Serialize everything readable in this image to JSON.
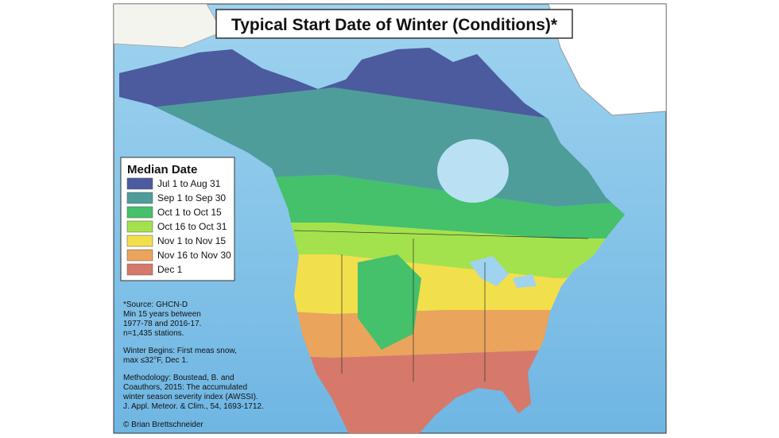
{
  "title": "Typical Start Date of Winter (Conditions)*",
  "legend": {
    "title": "Median Date",
    "items": [
      {
        "label": "Jul 1 to Aug 31",
        "color": "#4b5b9e"
      },
      {
        "label": "Sep 1 to Sep 30",
        "color": "#4f9d9b"
      },
      {
        "label": "Oct 1 to Oct 15",
        "color": "#45c06b"
      },
      {
        "label": "Oct 16 to Oct 31",
        "color": "#a3e24c"
      },
      {
        "label": "Nov 1 to Nov 15",
        "color": "#f2df4c"
      },
      {
        "label": "Nov 16 to Nov 30",
        "color": "#eba45c"
      },
      {
        "label": "Dec 1",
        "color": "#d6796a"
      }
    ]
  },
  "notes": [
    [
      "*Source: GHCN-D",
      "Min 15 years between",
      "1977-78 and 2016-17.",
      "n=1,435 stations."
    ],
    [
      "Winter Begins: First meas snow,",
      "max ≤32°F, Dec 1."
    ],
    [
      "Methodology: Boustead, B. and",
      "Coauthors, 2015: The accumulated",
      "winter season severity index (AWSSI).",
      "J. Appl. Meteor. & Clim., 54, 1693-1712."
    ]
  ],
  "credit": "© Brian Brettschneider"
}
